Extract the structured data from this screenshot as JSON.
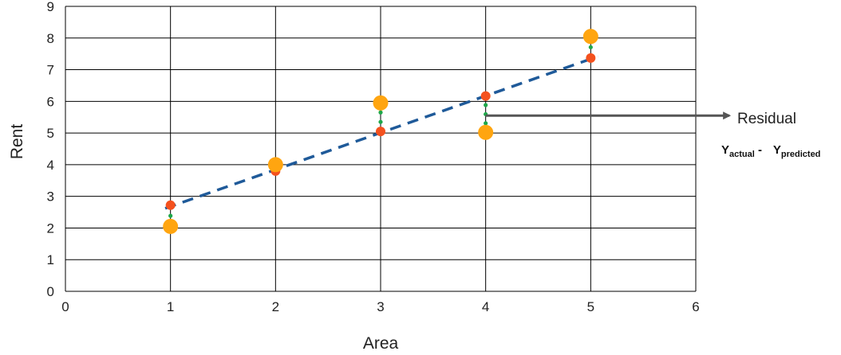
{
  "chart_data": {
    "type": "scatter",
    "xlabel": "Area",
    "ylabel": "Rent",
    "xlim": [
      0,
      6
    ],
    "ylim": [
      0,
      9
    ],
    "xticks": [
      0,
      1,
      2,
      3,
      4,
      5,
      6
    ],
    "yticks": [
      0,
      1,
      2,
      3,
      4,
      5,
      6,
      7,
      8,
      9
    ],
    "grid": true,
    "series": [
      {
        "role": "actual",
        "marker": "large-circle",
        "color": "#FFA510",
        "points": [
          [
            1,
            2.05
          ],
          [
            2,
            4.0
          ],
          [
            3,
            5.95
          ],
          [
            4,
            5.02
          ],
          [
            5,
            8.05
          ]
        ]
      },
      {
        "role": "predicted",
        "marker": "small-circle",
        "color": "#F4511E",
        "points": [
          [
            1,
            2.72
          ],
          [
            2,
            3.8
          ],
          [
            3,
            5.05
          ],
          [
            4,
            6.17
          ],
          [
            5,
            7.37
          ]
        ]
      }
    ],
    "regression_line": {
      "style": "dashed",
      "color": "#1F5A99",
      "from": [
        0.95,
        2.62
      ],
      "to": [
        5.07,
        7.42
      ]
    },
    "residual_markers": {
      "style": "dotted-green",
      "color": "#1EA84A"
    },
    "annotation": {
      "text": "Residual",
      "arrow_from": [
        4,
        5.55
      ],
      "arrow_to_x": 6.32,
      "formula": {
        "y1": "Y",
        "sub1": "actual",
        "sep": " - ",
        "y2": "Y",
        "sub2": "predicted"
      }
    }
  }
}
